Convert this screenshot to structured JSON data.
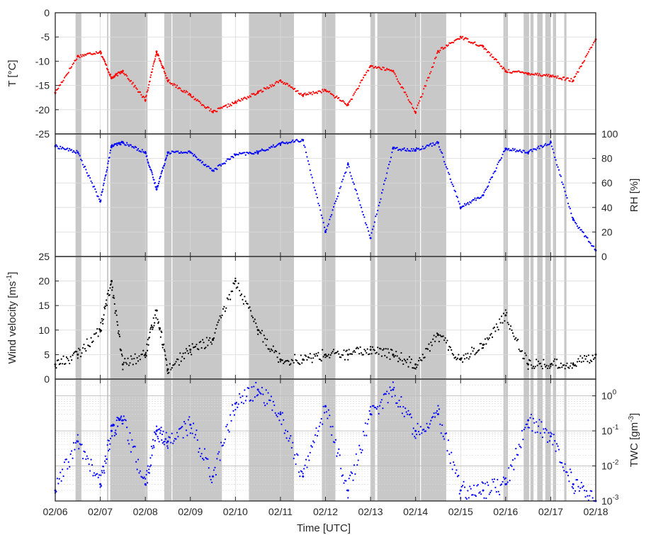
{
  "figure": {
    "xlabel": "Time [UTC]"
  },
  "colors": {
    "temperature": "#ff0000",
    "humidity": "#0000ff",
    "wind": "#000000",
    "twc": "#0000ff",
    "shade": "#c8c8c8",
    "grid": "#d9d9d9",
    "axis": "#262626"
  },
  "x_ticks": [
    "02/06",
    "02/07",
    "02/08",
    "02/09",
    "02/10",
    "02/11",
    "02/12",
    "02/13",
    "02/14",
    "02/15",
    "02/16",
    "02/17",
    "02/18"
  ],
  "shaded_intervals_days": [
    [
      6.45,
      6.58
    ],
    [
      7.15,
      7.18
    ],
    [
      7.22,
      8.05
    ],
    [
      8.42,
      8.58
    ],
    [
      8.6,
      9.7
    ],
    [
      10.3,
      11.3
    ],
    [
      11.92,
      12.22
    ],
    [
      13.0,
      13.1
    ],
    [
      13.15,
      14.1
    ],
    [
      14.12,
      14.68
    ],
    [
      15.95,
      16.05
    ],
    [
      16.4,
      16.52
    ],
    [
      16.55,
      16.62
    ],
    [
      16.7,
      16.82
    ],
    [
      16.88,
      17.0
    ],
    [
      17.05,
      17.12
    ],
    [
      17.3,
      17.35
    ]
  ],
  "chart_data": [
    {
      "type": "scatter",
      "ylabel": "T [°C]",
      "y_axis_side": "left",
      "ylim": [
        -25,
        0
      ],
      "yticks": [
        "-25",
        "-20",
        "-15",
        "-10",
        "-5",
        "0"
      ],
      "grid": true,
      "x": [
        "02/06",
        "02/06 12h",
        "02/07",
        "02/07 06h",
        "02/07 12h",
        "02/08",
        "02/08 06h",
        "02/08 12h",
        "02/09",
        "02/09 12h",
        "02/10",
        "02/10 12h",
        "02/11",
        "02/11 12h",
        "02/12",
        "02/12 12h",
        "02/13",
        "02/13 12h",
        "02/14",
        "02/14 12h",
        "02/15",
        "02/15 12h",
        "02/16",
        "02/16 12h",
        "02/17",
        "02/17 12h",
        "02/18"
      ],
      "y": [
        -16.5,
        -9,
        -8,
        -13.5,
        -12,
        -18,
        -8,
        -14,
        -17,
        -20.5,
        -18.5,
        -16.5,
        -14,
        -17,
        -16,
        -19,
        -11,
        -12,
        -20.5,
        -8,
        -5,
        -7,
        -12,
        -12.5,
        -13,
        -14,
        -5.5
      ]
    },
    {
      "type": "scatter",
      "ylabel": "RH [%]",
      "y_axis_side": "right",
      "ylim": [
        0,
        100
      ],
      "yticks": [
        "0",
        "20",
        "40",
        "60",
        "80",
        "100"
      ],
      "grid": true,
      "x": [
        "02/06",
        "02/06 12h",
        "02/07",
        "02/07 06h",
        "02/07 12h",
        "02/08",
        "02/08 06h",
        "02/08 12h",
        "02/09",
        "02/09 12h",
        "02/10",
        "02/10 12h",
        "02/11",
        "02/11 12h",
        "02/12",
        "02/12 12h",
        "02/13",
        "02/13 12h",
        "02/14",
        "02/14 12h",
        "02/15",
        "02/15 12h",
        "02/16",
        "02/16 12h",
        "02/17",
        "02/17 12h",
        "02/18"
      ],
      "y": [
        90,
        85,
        45,
        90,
        93,
        85,
        55,
        85,
        85,
        70,
        83,
        85,
        92,
        95,
        20,
        75,
        15,
        88,
        87,
        93,
        40,
        50,
        88,
        85,
        93,
        30,
        5
      ]
    },
    {
      "type": "scatter",
      "ylabel": "Wind velocity [ms-1]",
      "y_axis_side": "left",
      "ylim": [
        0,
        25
      ],
      "yticks": [
        "0",
        "5",
        "10",
        "15",
        "20",
        "25"
      ],
      "grid": true,
      "x": [
        "02/06",
        "02/06 12h",
        "02/07",
        "02/07 06h",
        "02/07 12h",
        "02/08",
        "02/08 06h",
        "02/08 12h",
        "02/09",
        "02/09 12h",
        "02/10",
        "02/10 12h",
        "02/11",
        "02/11 12h",
        "02/12",
        "02/12 12h",
        "02/13",
        "02/13 12h",
        "02/14",
        "02/14 12h",
        "02/15",
        "02/15 12h",
        "02/16",
        "02/16 12h",
        "02/17",
        "02/17 12h",
        "02/18"
      ],
      "y": [
        3,
        5,
        10,
        20,
        3,
        5,
        14,
        2,
        6,
        8,
        20,
        10,
        4,
        4,
        5,
        5,
        6,
        5,
        3,
        9,
        4,
        7,
        13,
        3,
        3,
        3,
        5
      ]
    },
    {
      "type": "scatter",
      "ylabel": "TWC [gm-3]",
      "y_axis_side": "right",
      "yscale": "log",
      "ylim": [
        0.001,
        3
      ],
      "yticks": [
        "10^-3",
        "10^-2",
        "10^-1",
        "10^0"
      ],
      "grid": true,
      "x": [
        "02/06",
        "02/06 12h",
        "02/07",
        "02/07 06h",
        "02/07 12h",
        "02/08",
        "02/08 06h",
        "02/08 12h",
        "02/09",
        "02/09 12h",
        "02/10",
        "02/10 12h",
        "02/11",
        "02/11 12h",
        "02/12",
        "02/12 12h",
        "02/13",
        "02/13 12h",
        "02/14",
        "02/14 12h",
        "02/15",
        "02/15 12h",
        "02/16",
        "02/16 12h",
        "02/17",
        "02/17 12h",
        "02/18"
      ],
      "y": [
        0.002,
        0.05,
        0.003,
        0.1,
        0.2,
        0.003,
        0.1,
        0.05,
        0.15,
        0.005,
        0.6,
        1.5,
        0.3,
        0.005,
        0.5,
        0.002,
        0.3,
        1.5,
        0.1,
        0.3,
        0.002,
        0.002,
        0.003,
        0.2,
        0.07,
        0.003,
        0.001
      ]
    }
  ]
}
